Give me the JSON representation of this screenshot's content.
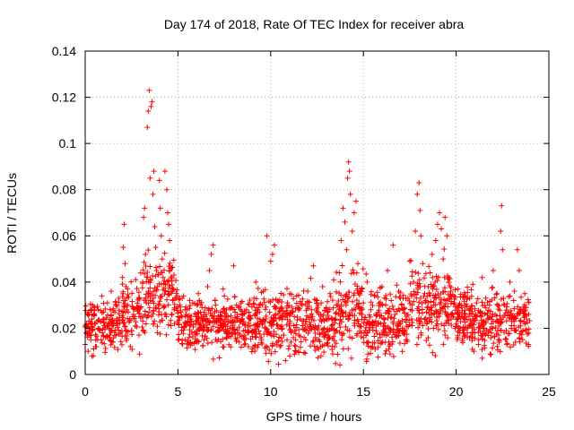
{
  "chart_data": {
    "type": "scatter",
    "title": "Day 174 of 2018, Rate Of TEC Index for receiver abra",
    "xlabel": "GPS time / hours",
    "ylabel": "ROTI / TECUs",
    "xlim": [
      0,
      25
    ],
    "ylim": [
      0,
      0.14
    ],
    "xticks": [
      0,
      5,
      10,
      15,
      20,
      25
    ],
    "xtick_labels": [
      "0",
      "5",
      "10",
      "15",
      "20",
      "25"
    ],
    "yticks": [
      0,
      0.02,
      0.04,
      0.06,
      0.08,
      0.1,
      0.12,
      0.14
    ],
    "ytick_labels": [
      "0",
      "0.02",
      "0.04",
      "0.06",
      "0.08",
      "0.1",
      "0.12",
      "0.14"
    ],
    "grid": true,
    "marker": "plus",
    "color": "#ff0000",
    "series": [
      {
        "name": "ROTI",
        "points": [
          [
            0.0,
            0.021
          ],
          [
            0.1,
            0.018
          ],
          [
            0.2,
            0.026
          ],
          [
            0.3,
            0.015
          ],
          [
            0.4,
            0.03
          ],
          [
            0.5,
            0.022
          ],
          [
            0.6,
            0.012
          ],
          [
            0.7,
            0.028
          ],
          [
            0.8,
            0.019
          ],
          [
            0.9,
            0.034
          ],
          [
            1.0,
            0.024
          ],
          [
            1.1,
            0.016
          ],
          [
            1.2,
            0.031
          ],
          [
            1.3,
            0.02
          ],
          [
            1.4,
            0.036
          ],
          [
            1.5,
            0.014
          ],
          [
            1.6,
            0.027
          ],
          [
            1.7,
            0.022
          ],
          [
            1.8,
            0.033
          ],
          [
            1.9,
            0.018
          ],
          [
            2.0,
            0.042
          ],
          [
            2.05,
            0.055
          ],
          [
            2.1,
            0.065
          ],
          [
            2.15,
            0.048
          ],
          [
            2.2,
            0.038
          ],
          [
            2.3,
            0.03
          ],
          [
            2.4,
            0.024
          ],
          [
            2.5,
            0.019
          ],
          [
            2.6,
            0.026
          ],
          [
            2.7,
            0.021
          ],
          [
            2.8,
            0.029
          ],
          [
            2.9,
            0.017
          ],
          [
            3.0,
            0.025
          ],
          [
            3.1,
            0.04
          ],
          [
            3.15,
            0.068
          ],
          [
            3.2,
            0.072
          ],
          [
            3.25,
            0.052
          ],
          [
            3.3,
            0.031
          ],
          [
            3.35,
            0.107
          ],
          [
            3.4,
            0.114
          ],
          [
            3.45,
            0.123
          ],
          [
            3.5,
            0.085
          ],
          [
            3.55,
            0.116
          ],
          [
            3.6,
            0.118
          ],
          [
            3.65,
            0.078
          ],
          [
            3.7,
            0.088
          ],
          [
            3.75,
            0.064
          ],
          [
            3.8,
            0.055
          ],
          [
            3.85,
            0.045
          ],
          [
            3.9,
            0.038
          ],
          [
            3.95,
            0.03
          ],
          [
            4.0,
            0.084
          ],
          [
            4.05,
            0.072
          ],
          [
            4.1,
            0.06
          ],
          [
            4.15,
            0.05
          ],
          [
            4.2,
            0.042
          ],
          [
            4.3,
            0.088
          ],
          [
            4.4,
            0.08
          ],
          [
            4.45,
            0.07
          ],
          [
            4.5,
            0.065
          ],
          [
            4.55,
            0.058
          ],
          [
            4.6,
            0.046
          ],
          [
            4.7,
            0.036
          ],
          [
            4.8,
            0.028
          ],
          [
            4.9,
            0.033
          ],
          [
            5.0,
            0.025
          ],
          [
            5.1,
            0.03
          ],
          [
            5.2,
            0.019
          ],
          [
            5.3,
            0.034
          ],
          [
            5.4,
            0.022
          ],
          [
            5.5,
            0.028
          ],
          [
            5.6,
            0.016
          ],
          [
            5.7,
            0.024
          ],
          [
            5.8,
            0.031
          ],
          [
            5.9,
            0.018
          ],
          [
            6.0,
            0.026
          ],
          [
            6.1,
            0.035
          ],
          [
            6.2,
            0.02
          ],
          [
            6.3,
            0.029
          ],
          [
            6.4,
            0.015
          ],
          [
            6.5,
            0.023
          ],
          [
            6.6,
            0.038
          ],
          [
            6.7,
            0.045
          ],
          [
            6.8,
            0.052
          ],
          [
            6.9,
            0.056
          ],
          [
            7.0,
            0.032
          ],
          [
            7.1,
            0.024
          ],
          [
            7.2,
            0.019
          ],
          [
            7.3,
            0.027
          ],
          [
            7.4,
            0.021
          ],
          [
            7.5,
            0.034
          ],
          [
            7.6,
            0.016
          ],
          [
            7.7,
            0.025
          ],
          [
            7.8,
            0.02
          ],
          [
            7.9,
            0.029
          ],
          [
            8.0,
            0.047
          ],
          [
            8.1,
            0.018
          ],
          [
            8.2,
            0.026
          ],
          [
            8.3,
            0.014
          ],
          [
            8.4,
            0.031
          ],
          [
            8.5,
            0.022
          ],
          [
            8.6,
            0.017
          ],
          [
            8.7,
            0.028
          ],
          [
            8.8,
            0.012
          ],
          [
            8.9,
            0.024
          ],
          [
            9.0,
            0.019
          ],
          [
            9.1,
            0.033
          ],
          [
            9.2,
            0.04
          ],
          [
            9.3,
            0.021
          ],
          [
            9.4,
            0.027
          ],
          [
            9.5,
            0.015
          ],
          [
            9.6,
            0.036
          ],
          [
            9.7,
            0.023
          ],
          [
            9.8,
            0.06
          ],
          [
            9.9,
            0.018
          ],
          [
            10.0,
            0.049
          ],
          [
            10.1,
            0.052
          ],
          [
            10.2,
            0.056
          ],
          [
            10.3,
            0.029
          ],
          [
            10.4,
            0.02
          ],
          [
            10.5,
            0.012
          ],
          [
            10.6,
            0.025
          ],
          [
            10.7,
            0.017
          ],
          [
            10.8,
            0.006
          ],
          [
            10.9,
            0.031
          ],
          [
            11.0,
            0.021
          ],
          [
            11.1,
            0.014
          ],
          [
            11.2,
            0.027
          ],
          [
            11.3,
            0.019
          ],
          [
            11.4,
            0.034
          ],
          [
            11.5,
            0.01
          ],
          [
            11.6,
            0.024
          ],
          [
            11.7,
            0.03
          ],
          [
            11.8,
            0.016
          ],
          [
            11.9,
            0.023
          ],
          [
            12.0,
            0.036
          ],
          [
            12.1,
            0.019
          ],
          [
            12.2,
            0.028
          ],
          [
            12.3,
            0.047
          ],
          [
            12.4,
            0.021
          ],
          [
            12.5,
            0.032
          ],
          [
            12.6,
            0.015
          ],
          [
            12.7,
            0.026
          ],
          [
            12.8,
            0.038
          ],
          [
            12.9,
            0.02
          ],
          [
            13.0,
            0.029
          ],
          [
            13.1,
            0.017
          ],
          [
            13.2,
            0.035
          ],
          [
            13.3,
            0.024
          ],
          [
            13.4,
            0.041
          ],
          [
            13.5,
            0.019
          ],
          [
            13.6,
            0.03
          ],
          [
            13.7,
            0.044
          ],
          [
            13.8,
            0.058
          ],
          [
            13.9,
            0.072
          ],
          [
            14.0,
            0.066
          ],
          [
            14.1,
            0.054
          ],
          [
            14.15,
            0.085
          ],
          [
            14.2,
            0.092
          ],
          [
            14.25,
            0.088
          ],
          [
            14.3,
            0.078
          ],
          [
            14.4,
            0.062
          ],
          [
            14.5,
            0.07
          ],
          [
            14.6,
            0.075
          ],
          [
            14.7,
            0.048
          ],
          [
            14.8,
            0.035
          ],
          [
            14.9,
            0.026
          ],
          [
            15.0,
            0.031
          ],
          [
            15.1,
            0.019
          ],
          [
            15.2,
            0.04
          ],
          [
            15.3,
            0.023
          ],
          [
            15.4,
            0.028
          ],
          [
            15.5,
            0.012
          ],
          [
            15.6,
            0.034
          ],
          [
            15.7,
            0.021
          ],
          [
            15.8,
            0.027
          ],
          [
            15.9,
            0.016
          ],
          [
            16.0,
            0.038
          ],
          [
            16.1,
            0.024
          ],
          [
            16.2,
            0.03
          ],
          [
            16.3,
            0.045
          ],
          [
            16.4,
            0.02
          ],
          [
            16.5,
            0.032
          ],
          [
            16.6,
            0.056
          ],
          [
            16.7,
            0.026
          ],
          [
            16.8,
            0.018
          ],
          [
            16.9,
            0.036
          ],
          [
            17.0,
            0.022
          ],
          [
            17.1,
            0.01
          ],
          [
            17.2,
            0.029
          ],
          [
            17.3,
            0.015
          ],
          [
            17.4,
            0.033
          ],
          [
            17.5,
            0.049
          ],
          [
            17.6,
            0.024
          ],
          [
            17.7,
            0.04
          ],
          [
            17.8,
            0.062
          ],
          [
            17.9,
            0.078
          ],
          [
            18.0,
            0.083
          ],
          [
            18.05,
            0.071
          ],
          [
            18.1,
            0.06
          ],
          [
            18.2,
            0.048
          ],
          [
            18.3,
            0.035
          ],
          [
            18.4,
            0.027
          ],
          [
            18.5,
            0.038
          ],
          [
            18.6,
            0.044
          ],
          [
            18.7,
            0.052
          ],
          [
            18.8,
            0.03
          ],
          [
            18.9,
            0.058
          ],
          [
            19.0,
            0.065
          ],
          [
            19.1,
            0.07
          ],
          [
            19.2,
            0.063
          ],
          [
            19.3,
            0.05
          ],
          [
            19.4,
            0.068
          ],
          [
            19.5,
            0.06
          ],
          [
            19.6,
            0.042
          ],
          [
            19.7,
            0.034
          ],
          [
            19.8,
            0.026
          ],
          [
            19.9,
            0.031
          ],
          [
            20.0,
            0.022
          ],
          [
            20.1,
            0.037
          ],
          [
            20.2,
            0.018
          ],
          [
            20.3,
            0.029
          ],
          [
            20.4,
            0.024
          ],
          [
            20.5,
            0.034
          ],
          [
            20.6,
            0.016
          ],
          [
            20.7,
            0.028
          ],
          [
            20.8,
            0.021
          ],
          [
            20.9,
            0.039
          ],
          [
            21.0,
            0.025
          ],
          [
            21.1,
            0.031
          ],
          [
            21.2,
            0.013
          ],
          [
            21.3,
            0.027
          ],
          [
            21.4,
            0.042
          ],
          [
            21.5,
            0.02
          ],
          [
            21.6,
            0.033
          ],
          [
            21.7,
            0.024
          ],
          [
            21.8,
            0.03
          ],
          [
            21.9,
            0.018
          ],
          [
            22.0,
            0.045
          ],
          [
            22.1,
            0.026
          ],
          [
            22.2,
            0.035
          ],
          [
            22.3,
            0.021
          ],
          [
            22.4,
            0.062
          ],
          [
            22.45,
            0.073
          ],
          [
            22.5,
            0.054
          ],
          [
            22.6,
            0.03
          ],
          [
            22.7,
            0.019
          ],
          [
            22.8,
            0.027
          ],
          [
            22.9,
            0.04
          ],
          [
            23.0,
            0.023
          ],
          [
            23.1,
            0.032
          ],
          [
            23.2,
            0.014
          ],
          [
            23.3,
            0.054
          ],
          [
            23.4,
            0.045
          ],
          [
            23.5,
            0.028
          ],
          [
            23.6,
            0.019
          ],
          [
            23.7,
            0.035
          ],
          [
            23.8,
            0.024
          ],
          [
            23.9,
            0.013
          ]
        ]
      }
    ],
    "dense_band": {
      "segments": [
        {
          "x0": 0.0,
          "x1": 2.0,
          "center": 0.021,
          "spread": 0.009
        },
        {
          "x0": 2.0,
          "x1": 3.0,
          "center": 0.028,
          "spread": 0.012
        },
        {
          "x0": 3.0,
          "x1": 5.0,
          "center": 0.033,
          "spread": 0.014
        },
        {
          "x0": 5.0,
          "x1": 9.0,
          "center": 0.022,
          "spread": 0.008
        },
        {
          "x0": 9.0,
          "x1": 13.5,
          "center": 0.022,
          "spread": 0.011
        },
        {
          "x0": 13.5,
          "x1": 15.0,
          "center": 0.027,
          "spread": 0.013
        },
        {
          "x0": 15.0,
          "x1": 17.5,
          "center": 0.023,
          "spread": 0.011
        },
        {
          "x0": 17.5,
          "x1": 20.0,
          "center": 0.029,
          "spread": 0.013
        },
        {
          "x0": 20.0,
          "x1": 24.0,
          "center": 0.023,
          "spread": 0.01
        }
      ],
      "count": 1800
    }
  }
}
